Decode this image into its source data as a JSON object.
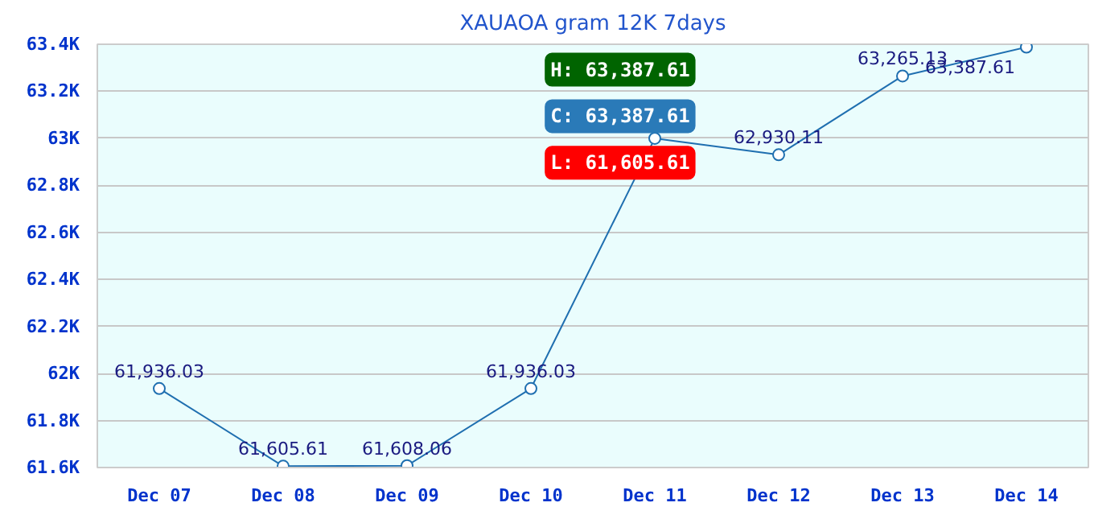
{
  "chart_data": {
    "type": "line",
    "title": "XAUAOA gram 12K 7days",
    "categories": [
      "Dec 07",
      "Dec 08",
      "Dec 09",
      "Dec 10",
      "Dec 11",
      "Dec 12",
      "Dec 13",
      "Dec 14"
    ],
    "series": [
      {
        "color": "#1f6fb0",
        "values": [
          61936.03,
          61605.61,
          61608.06,
          61936.03,
          63000,
          62930.11,
          63265.13,
          63387.61
        ],
        "value_labels": [
          "61,936.03",
          "61,605.61",
          "61,608.06",
          "61,936.03",
          null,
          "62,930.11",
          "63,265.13",
          "63,387.61"
        ]
      }
    ],
    "ylim": [
      61600,
      63400
    ],
    "yticks": [
      {
        "value": 61600,
        "label": "61.6K"
      },
      {
        "value": 61800,
        "label": "61.8K"
      },
      {
        "value": 62000,
        "label": "62K"
      },
      {
        "value": 62200,
        "label": "62.2K"
      },
      {
        "value": 62400,
        "label": "62.4K"
      },
      {
        "value": 62600,
        "label": "62.6K"
      },
      {
        "value": 62800,
        "label": "62.8K"
      },
      {
        "value": 63000,
        "label": "63K"
      },
      {
        "value": 63200,
        "label": "63.2K"
      },
      {
        "value": 63400,
        "label": "63.4K"
      }
    ],
    "grid": "y",
    "marker": "circle",
    "line_style": "solid",
    "annotations": [
      "H: 63,387.61",
      "C: 63,387.61",
      "L: 61,605.61"
    ]
  }
}
